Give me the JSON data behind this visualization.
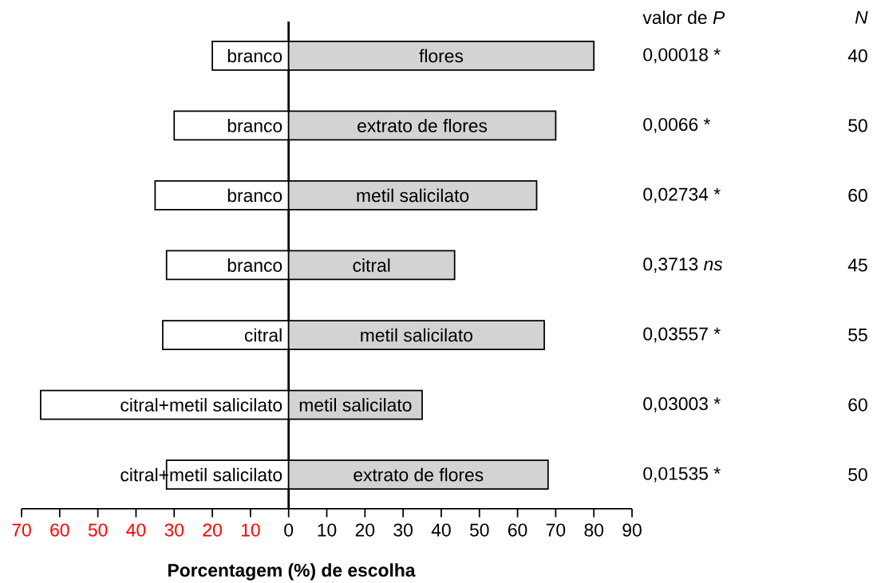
{
  "chart_data": {
    "type": "bar",
    "orientation": "horizontal",
    "stacked": true,
    "tick_labels": "x",
    "categories": [
      null,
      null,
      null,
      null,
      null,
      null,
      null
    ],
    "series": [
      {
        "color": "#ffffff",
        "values": [
          -20,
          -30,
          -35,
          -32,
          -33,
          -65,
          -32
        ],
        "value_labels": [
          "branco",
          "branco",
          "branco",
          "branco",
          "citral",
          "citral+metil salicilato",
          "citral+metil salicilato"
        ]
      },
      {
        "color": "#d3d3d3",
        "values": [
          80,
          70,
          65,
          43.5,
          67,
          35,
          68
        ],
        "value_labels": [
          "flores",
          "extrato de flores",
          "metil salicilato",
          "citral",
          "metil salicilato",
          "metil salicilato",
          "extrato de flores"
        ]
      }
    ],
    "xlim": [
      -70,
      90
    ],
    "xticks": [
      {
        "value": -70,
        "label": "70"
      },
      {
        "value": -60,
        "label": "60"
      },
      {
        "value": -50,
        "label": "50"
      },
      {
        "value": -40,
        "label": "40"
      },
      {
        "value": -30,
        "label": "30"
      },
      {
        "value": -20,
        "label": "20"
      },
      {
        "value": -10,
        "label": "10"
      },
      0,
      10,
      20,
      30,
      40,
      50,
      60,
      70,
      80,
      90
    ],
    "xlabel": "Porcentagem (%) de escolha",
    "annotations": [
      "valor de *P*",
      "*N*",
      "0,00018 *",
      "40",
      "0,0066 *",
      "50",
      "0,02734 *",
      "60",
      "0,3713 *ns*",
      "45",
      "0,03557 *",
      "55",
      "0,03003 *",
      "60",
      "0,01535 *",
      "50"
    ]
  }
}
